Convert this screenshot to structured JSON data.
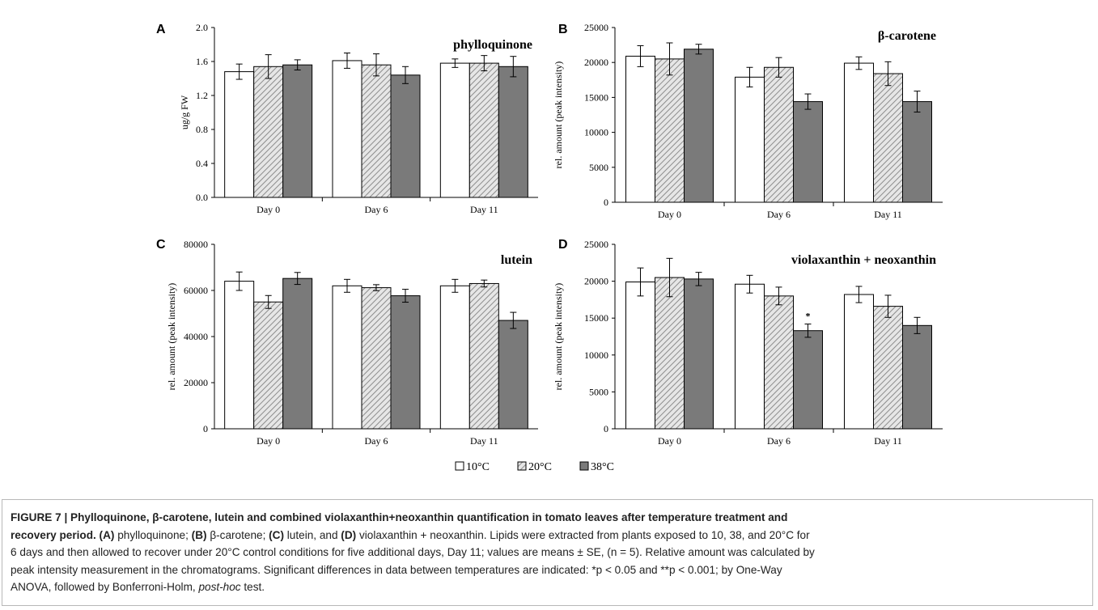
{
  "legend": {
    "items": [
      {
        "label": "10°C",
        "fill": "#ffffff"
      },
      {
        "label": "20°C",
        "fill": "hatch"
      },
      {
        "label": "38°C",
        "fill": "#7a7a7a"
      }
    ]
  },
  "chart_data": [
    {
      "type": "bar",
      "letter": "A",
      "title": "phylloquinone",
      "ylabel": "ug/g FW",
      "categories": [
        "Day 0",
        "Day 6",
        "Day 11"
      ],
      "ylim": [
        0,
        2.0
      ],
      "yticks": [
        "0.0",
        "0.4",
        "0.8",
        "1.2",
        "1.6",
        "2.0"
      ],
      "series": [
        {
          "name": "10°C",
          "values": [
            1.48,
            1.61,
            1.58
          ],
          "errors": [
            0.09,
            0.09,
            0.05
          ]
        },
        {
          "name": "20°C",
          "values": [
            1.54,
            1.56,
            1.58
          ],
          "errors": [
            0.14,
            0.13,
            0.09
          ]
        },
        {
          "name": "38°C",
          "values": [
            1.56,
            1.44,
            1.54
          ],
          "errors": [
            0.06,
            0.1,
            0.12
          ]
        }
      ],
      "annotations": []
    },
    {
      "type": "bar",
      "letter": "B",
      "title": "β-carotene",
      "ylabel": "rel. amount (peak intensity)",
      "categories": [
        "Day 0",
        "Day 6",
        "Day 11"
      ],
      "ylim": [
        0,
        25000
      ],
      "yticks": [
        "0",
        "5000",
        "10000",
        "15000",
        "20000",
        "25000"
      ],
      "series": [
        {
          "name": "10°C",
          "values": [
            20900,
            17900,
            19900
          ],
          "errors": [
            1500,
            1400,
            900
          ]
        },
        {
          "name": "20°C",
          "values": [
            20500,
            19300,
            18400
          ],
          "errors": [
            2300,
            1400,
            1700
          ]
        },
        {
          "name": "38°C",
          "values": [
            21900,
            14400,
            14400
          ],
          "errors": [
            700,
            1100,
            1500
          ]
        }
      ],
      "annotations": []
    },
    {
      "type": "bar",
      "letter": "C",
      "title": "lutein",
      "ylabel": "rel. amount (peak intensity)",
      "categories": [
        "Day 0",
        "Day 6",
        "Day 11"
      ],
      "ylim": [
        0,
        80000
      ],
      "yticks": [
        "0",
        "20000",
        "40000",
        "60000",
        "80000"
      ],
      "series": [
        {
          "name": "10°C",
          "values": [
            64000,
            62000,
            62000
          ],
          "errors": [
            4000,
            2800,
            2800
          ]
        },
        {
          "name": "20°C",
          "values": [
            55000,
            61200,
            63000
          ],
          "errors": [
            2800,
            1300,
            1500
          ]
        },
        {
          "name": "38°C",
          "values": [
            65200,
            57700,
            47000
          ],
          "errors": [
            2600,
            2800,
            3500
          ]
        }
      ],
      "annotations": []
    },
    {
      "type": "bar",
      "letter": "D",
      "title": "violaxanthin + neoxanthin",
      "ylabel": "rel. amount (peak intensity)",
      "categories": [
        "Day 0",
        "Day 6",
        "Day 11"
      ],
      "ylim": [
        0,
        25000
      ],
      "yticks": [
        "0",
        "5000",
        "10000",
        "15000",
        "20000",
        "25000"
      ],
      "series": [
        {
          "name": "10°C",
          "values": [
            19900,
            19600,
            18200
          ],
          "errors": [
            1900,
            1200,
            1100
          ]
        },
        {
          "name": "20°C",
          "values": [
            20500,
            18000,
            16600
          ],
          "errors": [
            2600,
            1200,
            1500
          ]
        },
        {
          "name": "38°C",
          "values": [
            20300,
            13300,
            14000
          ],
          "errors": [
            900,
            900,
            1100
          ]
        }
      ],
      "annotations": [
        {
          "category": 1,
          "series": 2,
          "text": "*"
        }
      ]
    }
  ],
  "caption": {
    "l1a": "FIGURE 7 | Phylloquinone, β-carotene, lutein and combined violaxanthin+neoxanthin quantification in tomato leaves after temperature treatment and",
    "l2a": "recovery period. (A)",
    "l2b": " phylloquinone; ",
    "l2c": "(B)",
    "l2d": " β-carotene; ",
    "l2e": "(C)",
    "l2f": " lutein, and ",
    "l2g": "(D)",
    "l2h": " violaxanthin + neoxanthin. Lipids were extracted from plants exposed to 10, 38, and 20°C for",
    "l3": "6 days and then allowed to recover under 20°C control conditions for five additional days, Day 11; values are means ± SE, (n = 5). Relative amount was calculated by",
    "l4": "peak intensity measurement in the chromatograms. Significant differences in data between temperatures are indicated: *p < 0.05 and **p < 0.001; by One-Way",
    "l5a": "ANOVA, followed by Bonferroni-Holm, ",
    "l5b": "post-hoc",
    "l5c": " test."
  }
}
